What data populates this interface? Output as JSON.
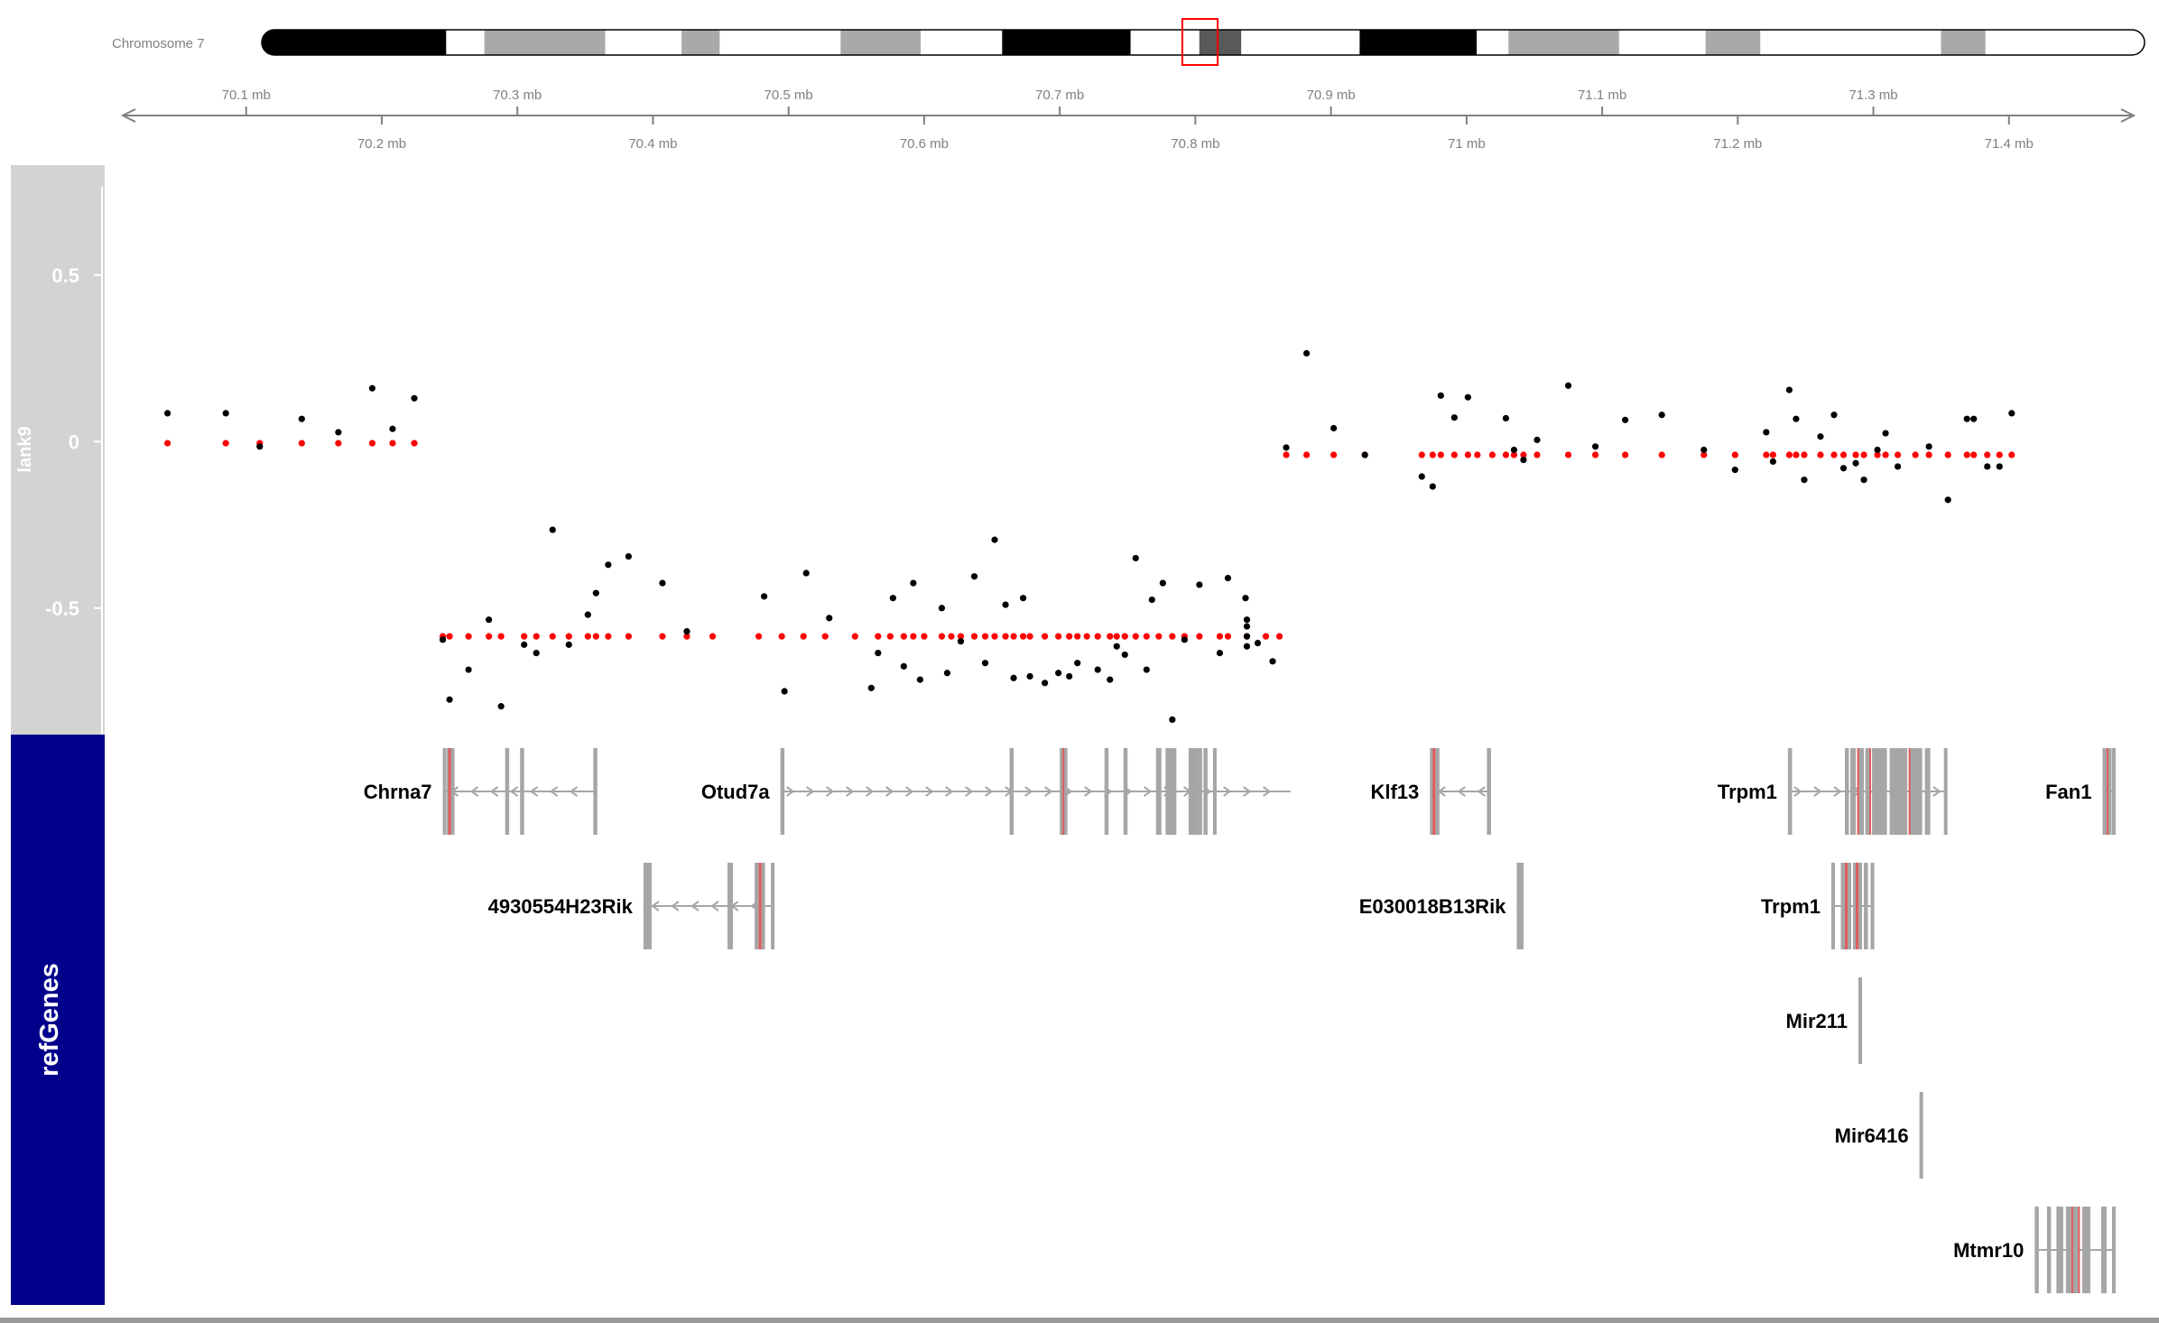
{
  "chromosome": {
    "label": "Chromosome 7",
    "ideogram_range_mb": [
      70.0,
      71.48
    ],
    "highlight_mb": [
      70.73,
      70.745
    ],
    "bands": [
      {
        "start": 70.0,
        "end": 70.145,
        "color": "#000000"
      },
      {
        "start": 70.145,
        "end": 70.175,
        "color": "#ffffff"
      },
      {
        "start": 70.175,
        "end": 70.27,
        "color": "#a9a9a9"
      },
      {
        "start": 70.27,
        "end": 70.33,
        "color": "#ffffff"
      },
      {
        "start": 70.33,
        "end": 70.36,
        "color": "#a9a9a9"
      },
      {
        "start": 70.36,
        "end": 70.455,
        "color": "#ffffff"
      },
      {
        "start": 70.455,
        "end": 70.518,
        "color": "#a9a9a9"
      },
      {
        "start": 70.518,
        "end": 70.582,
        "color": "#ffffff"
      },
      {
        "start": 70.582,
        "end": 70.683,
        "color": "#000000"
      },
      {
        "start": 70.683,
        "end": 70.737,
        "color": "#ffffff"
      },
      {
        "start": 70.737,
        "end": 70.77,
        "color": "#595959"
      },
      {
        "start": 70.77,
        "end": 70.863,
        "color": "#ffffff"
      },
      {
        "start": 70.863,
        "end": 70.955,
        "color": "#000000"
      },
      {
        "start": 70.955,
        "end": 70.98,
        "color": "#ffffff"
      },
      {
        "start": 70.98,
        "end": 71.067,
        "color": "#a9a9a9"
      },
      {
        "start": 71.067,
        "end": 71.135,
        "color": "#ffffff"
      },
      {
        "start": 71.135,
        "end": 71.178,
        "color": "#a9a9a9"
      },
      {
        "start": 71.178,
        "end": 71.32,
        "color": "#ffffff"
      },
      {
        "start": 71.32,
        "end": 71.355,
        "color": "#a9a9a9"
      },
      {
        "start": 71.355,
        "end": 71.48,
        "color": "#ffffff"
      }
    ]
  },
  "axis": {
    "range_mb": [
      70.009,
      71.492
    ],
    "upper_ticks": [
      {
        "value": 70.1,
        "label": "70.1 mb"
      },
      {
        "value": 70.3,
        "label": "70.3 mb"
      },
      {
        "value": 70.5,
        "label": "70.5 mb"
      },
      {
        "value": 70.7,
        "label": "70.7 mb"
      },
      {
        "value": 70.9,
        "label": "70.9 mb"
      },
      {
        "value": 71.1,
        "label": "71.1 mb"
      },
      {
        "value": 71.3,
        "label": "71.3 mb"
      }
    ],
    "lower_ticks": [
      {
        "value": 70.2,
        "label": "70.2 mb"
      },
      {
        "value": 70.4,
        "label": "70.4 mb"
      },
      {
        "value": 70.6,
        "label": "70.6 mb"
      },
      {
        "value": 70.8,
        "label": "70.8 mb"
      },
      {
        "value": 71.0,
        "label": "71 mb"
      },
      {
        "value": 71.2,
        "label": "71.2 mb"
      },
      {
        "value": 71.4,
        "label": "71.4 mb"
      }
    ]
  },
  "chart_data": {
    "type": "scatter",
    "track_label": "lank9",
    "ylim": [
      -0.88,
      0.83
    ],
    "y_ticks": [
      {
        "value": 0.5,
        "label": "0.5"
      },
      {
        "value": 0,
        "label": "0"
      },
      {
        "value": -0.5,
        "label": "-0.5"
      }
    ],
    "observed_color": "#000000",
    "segment_color": "#ff0000",
    "observed": [
      [
        70.042,
        0.085
      ],
      [
        70.085,
        0.085
      ],
      [
        70.11,
        -0.015
      ],
      [
        70.141,
        0.068
      ],
      [
        70.168,
        0.028
      ],
      [
        70.193,
        0.16
      ],
      [
        70.208,
        0.038
      ],
      [
        70.224,
        0.13
      ],
      [
        70.245,
        -0.595
      ],
      [
        70.25,
        -0.775
      ],
      [
        70.264,
        -0.685
      ],
      [
        70.279,
        -0.535
      ],
      [
        70.288,
        -0.795
      ],
      [
        70.305,
        -0.61
      ],
      [
        70.314,
        -0.635
      ],
      [
        70.326,
        -0.265
      ],
      [
        70.338,
        -0.61
      ],
      [
        70.352,
        -0.52
      ],
      [
        70.358,
        -0.455
      ],
      [
        70.367,
        -0.37
      ],
      [
        70.382,
        -0.345
      ],
      [
        70.407,
        -0.425
      ],
      [
        70.425,
        -0.57
      ],
      [
        70.482,
        -0.465
      ],
      [
        70.497,
        -0.75
      ],
      [
        70.513,
        -0.395
      ],
      [
        70.53,
        -0.53
      ],
      [
        70.561,
        -0.74
      ],
      [
        70.566,
        -0.635
      ],
      [
        70.577,
        -0.47
      ],
      [
        70.585,
        -0.675
      ],
      [
        70.592,
        -0.425
      ],
      [
        70.597,
        -0.715
      ],
      [
        70.613,
        -0.5
      ],
      [
        70.617,
        -0.695
      ],
      [
        70.627,
        -0.6
      ],
      [
        70.637,
        -0.405
      ],
      [
        70.645,
        -0.665
      ],
      [
        70.652,
        -0.295
      ],
      [
        70.66,
        -0.49
      ],
      [
        70.666,
        -0.71
      ],
      [
        70.673,
        -0.47
      ],
      [
        70.678,
        -0.705
      ],
      [
        70.689,
        -0.725
      ],
      [
        70.699,
        -0.695
      ],
      [
        70.707,
        -0.705
      ],
      [
        70.713,
        -0.665
      ],
      [
        70.728,
        -0.685
      ],
      [
        70.737,
        -0.715
      ],
      [
        70.742,
        -0.615
      ],
      [
        70.748,
        -0.64
      ],
      [
        70.756,
        -0.35
      ],
      [
        70.764,
        -0.685
      ],
      [
        70.768,
        -0.475
      ],
      [
        70.776,
        -0.425
      ],
      [
        70.783,
        -0.835
      ],
      [
        70.792,
        -0.595
      ],
      [
        70.803,
        -0.43
      ],
      [
        70.818,
        -0.635
      ],
      [
        70.824,
        -0.41
      ],
      [
        70.837,
        -0.47
      ],
      [
        70.838,
        -0.535
      ],
      [
        70.838,
        -0.555
      ],
      [
        70.838,
        -0.585
      ],
      [
        70.838,
        -0.615
      ],
      [
        70.846,
        -0.605
      ],
      [
        70.857,
        -0.66
      ],
      [
        70.867,
        -0.018
      ],
      [
        70.882,
        0.265
      ],
      [
        70.902,
        0.04
      ],
      [
        70.925,
        -0.04
      ],
      [
        70.967,
        -0.105
      ],
      [
        70.975,
        -0.135
      ],
      [
        70.981,
        0.138
      ],
      [
        70.991,
        0.072
      ],
      [
        71.001,
        0.133
      ],
      [
        71.029,
        0.07
      ],
      [
        71.035,
        -0.025
      ],
      [
        71.042,
        -0.055
      ],
      [
        71.052,
        0.005
      ],
      [
        71.075,
        0.168
      ],
      [
        71.095,
        -0.015
      ],
      [
        71.117,
        0.065
      ],
      [
        71.144,
        0.08
      ],
      [
        71.175,
        -0.025
      ],
      [
        71.198,
        -0.085
      ],
      [
        71.221,
        0.028
      ],
      [
        71.226,
        -0.06
      ],
      [
        71.238,
        0.155
      ],
      [
        71.243,
        0.068
      ],
      [
        71.249,
        -0.115
      ],
      [
        71.261,
        0.015
      ],
      [
        71.271,
        0.08
      ],
      [
        71.278,
        -0.08
      ],
      [
        71.287,
        -0.065
      ],
      [
        71.293,
        -0.115
      ],
      [
        71.303,
        -0.025
      ],
      [
        71.309,
        0.025
      ],
      [
        71.318,
        -0.075
      ],
      [
        71.341,
        -0.015
      ],
      [
        71.355,
        -0.175
      ],
      [
        71.369,
        0.068
      ],
      [
        71.374,
        0.068
      ],
      [
        71.384,
        -0.075
      ],
      [
        71.393,
        -0.075
      ],
      [
        71.402,
        0.085
      ]
    ],
    "segments": [
      {
        "value": -0.005,
        "x": [
          70.042,
          70.085,
          70.11,
          70.141,
          70.168,
          70.193,
          70.208,
          70.224
        ]
      },
      {
        "value": -0.585,
        "x": [
          70.245,
          70.25,
          70.264,
          70.279,
          70.288,
          70.305,
          70.314,
          70.326,
          70.338,
          70.352,
          70.358,
          70.367,
          70.382,
          70.407,
          70.425,
          70.444
        ]
      },
      {
        "value": -0.585,
        "x": [
          70.478,
          70.495,
          70.511,
          70.527,
          70.549,
          70.566,
          70.575,
          70.585,
          70.592,
          70.6,
          70.613,
          70.62,
          70.627,
          70.637,
          70.645,
          70.652,
          70.66,
          70.666,
          70.673,
          70.678,
          70.689,
          70.699,
          70.707,
          70.713,
          70.72,
          70.728,
          70.737,
          70.742,
          70.748,
          70.756,
          70.764,
          70.773,
          70.783,
          70.792,
          70.803,
          70.818,
          70.824,
          70.838,
          70.852,
          70.862
        ]
      },
      {
        "value": -0.04,
        "x": [
          70.867,
          70.882,
          70.902,
          70.925,
          70.967,
          70.975,
          70.981,
          70.991,
          71.001,
          71.008,
          71.019,
          71.029,
          71.035,
          71.042,
          71.052,
          71.075,
          71.095,
          71.117,
          71.144,
          71.175,
          71.198,
          71.221,
          71.226,
          71.238,
          71.243,
          71.249,
          71.261,
          71.271,
          71.278,
          71.287,
          71.293,
          71.303,
          71.309,
          71.318,
          71.331,
          71.341,
          71.355,
          71.369,
          71.374,
          71.384,
          71.393,
          71.402
        ]
      }
    ]
  },
  "genes": {
    "track_label": "refGenes",
    "items": [
      {
        "name": "Chrna7",
        "row": 0,
        "start": 70.245,
        "end": 70.359,
        "strand": "-",
        "exons": [
          [
            70.245,
            70.247
          ],
          [
            70.248,
            70.249
          ],
          [
            70.251,
            70.253
          ],
          [
            70.291,
            70.294
          ],
          [
            70.302,
            70.305
          ],
          [
            70.356,
            70.359
          ]
        ],
        "utr": [
          [
            70.249,
            70.251
          ]
        ]
      },
      {
        "name": "Otud7a",
        "row": 0,
        "start": 70.494,
        "end": 70.87,
        "strand": "+",
        "exons": [
          [
            70.494,
            70.497
          ],
          [
            70.663,
            70.666
          ],
          [
            70.7,
            70.702
          ],
          [
            70.703,
            70.704
          ],
          [
            70.733,
            70.736
          ],
          [
            70.747,
            70.75
          ],
          [
            70.771,
            70.775
          ],
          [
            70.778,
            70.786
          ],
          [
            70.795,
            70.802
          ],
          [
            70.802,
            70.805
          ],
          [
            70.806,
            70.809
          ],
          [
            70.813,
            70.815
          ]
        ],
        "utr": [
          [
            70.702,
            70.703
          ]
        ]
      },
      {
        "name": "Klf13",
        "row": 0,
        "start": 70.973,
        "end": 71.018,
        "strand": "-",
        "exons": [
          [
            70.973,
            70.975
          ],
          [
            70.977,
            70.98
          ],
          [
            71.015,
            71.018
          ]
        ],
        "utr": [
          [
            70.975,
            70.977
          ]
        ]
      },
      {
        "name": "Trpm1",
        "row": 0,
        "start": 71.237,
        "end": 71.354,
        "strand": "+",
        "exons": [
          [
            71.237,
            71.24
          ],
          [
            71.279,
            71.282
          ],
          [
            71.283,
            71.287
          ],
          [
            71.289,
            71.293
          ],
          [
            71.294,
            71.297
          ],
          [
            71.299,
            71.31
          ],
          [
            71.312,
            71.325
          ],
          [
            71.327,
            71.336
          ],
          [
            71.338,
            71.342
          ],
          [
            71.352,
            71.354
          ]
        ],
        "utr": [
          [
            71.288,
            71.289
          ],
          [
            71.297,
            71.298
          ],
          [
            71.326,
            71.327
          ]
        ]
      },
      {
        "name": "Fan1",
        "row": 0,
        "start": 71.469,
        "end": 71.478,
        "strand": "+",
        "exons": [
          [
            71.469,
            71.472
          ],
          [
            71.473,
            71.475
          ],
          [
            71.476,
            71.478
          ]
        ],
        "utr": [
          [
            71.472,
            71.473
          ]
        ]
      },
      {
        "name": "4930554H23Rik",
        "row": 1,
        "start": 70.393,
        "end": 70.489,
        "strand": "-",
        "exons": [
          [
            70.393,
            70.399
          ],
          [
            70.455,
            70.459
          ],
          [
            70.475,
            70.478
          ],
          [
            70.48,
            70.482
          ],
          [
            70.487,
            70.489
          ]
        ],
        "utr": [
          [
            70.478,
            70.48
          ]
        ]
      },
      {
        "name": "E030018B13Rik",
        "row": 1,
        "start": 71.037,
        "end": 71.042,
        "strand": "",
        "exons": [
          [
            71.037,
            71.042
          ]
        ],
        "utr": []
      },
      {
        "name": "Trpm1",
        "row": 1,
        "start": 71.269,
        "end": 71.3,
        "strand": "",
        "exons": [
          [
            71.269,
            71.271
          ],
          [
            71.276,
            71.279
          ],
          [
            71.281,
            71.283
          ],
          [
            71.285,
            71.287
          ],
          [
            71.289,
            71.291
          ],
          [
            71.293,
            71.296
          ],
          [
            71.298,
            71.3
          ]
        ],
        "utr": [
          [
            71.279,
            71.281
          ],
          [
            71.287,
            71.289
          ]
        ]
      },
      {
        "name": "Mir211",
        "row": 2,
        "start": 71.289,
        "end": 71.291,
        "strand": "",
        "exons": [
          [
            71.289,
            71.291
          ]
        ],
        "utr": []
      },
      {
        "name": "Mir6416",
        "row": 3,
        "start": 71.334,
        "end": 71.335,
        "strand": "",
        "exons": [
          [
            71.334,
            71.336
          ]
        ],
        "utr": []
      },
      {
        "name": "Mtmr10",
        "row": 4,
        "start": 71.419,
        "end": 71.478,
        "strand": "",
        "exons": [
          [
            71.419,
            71.422
          ],
          [
            71.428,
            71.431
          ],
          [
            71.435,
            71.44
          ],
          [
            71.442,
            71.446
          ],
          [
            71.447,
            71.451
          ],
          [
            71.454,
            71.46
          ],
          [
            71.468,
            71.472
          ],
          [
            71.476,
            71.478
          ]
        ],
        "utr": [
          [
            71.446,
            71.447
          ],
          [
            71.451,
            71.452
          ]
        ]
      }
    ]
  },
  "colors": {
    "observed": "#000000",
    "segment": "#ff0000",
    "exon": "#a6a6a6",
    "utr": "#e05c5c",
    "data_track_header": "#d3d3d3",
    "gene_track_header": "#00008b",
    "axis": "#808080",
    "highlight": "#ff0000"
  }
}
